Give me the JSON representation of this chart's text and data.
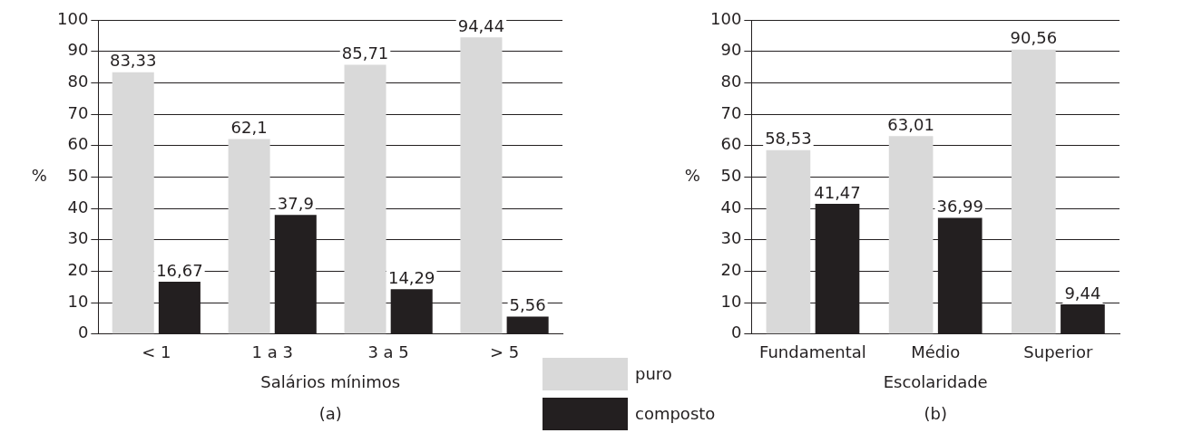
{
  "chart_data": [
    {
      "type": "bar",
      "xlabel": "Salários mínimos",
      "ylabel": "%",
      "categories": [
        "< 1",
        "1 a 3",
        "3 a 5",
        "> 5"
      ],
      "series": [
        {
          "name": "puro",
          "color": "#d9d9d9",
          "values": [
            83.33,
            62.1,
            85.71,
            94.44
          ],
          "value_labels": [
            "83,33",
            "62,1",
            "85,71",
            "94,44"
          ]
        },
        {
          "name": "composto",
          "color": "#231f20",
          "values": [
            16.67,
            37.9,
            14.29,
            5.56
          ],
          "value_labels": [
            "16,67",
            "37,9",
            "14,29",
            "5,56"
          ]
        }
      ],
      "ylim": [
        0,
        100
      ],
      "yticks": [
        0,
        10,
        20,
        30,
        40,
        50,
        60,
        70,
        80,
        90,
        100
      ],
      "grid": "y",
      "legend": "bottom right",
      "annotations": [
        "(a)"
      ]
    },
    {
      "type": "bar",
      "xlabel": "Escolaridade",
      "ylabel": "%",
      "categories": [
        "Fundamental",
        "Médio",
        "Superior"
      ],
      "series": [
        {
          "color": "#d9d9d9",
          "values": [
            58.53,
            63.01,
            90.56
          ],
          "value_labels": [
            "58,53",
            "63,01",
            "90,56"
          ]
        },
        {
          "color": "#231f20",
          "values": [
            41.47,
            36.99,
            9.44
          ],
          "value_labels": [
            "41,47",
            "36,99",
            "9,44"
          ]
        }
      ],
      "ylim": [
        0,
        100
      ],
      "yticks": [
        0,
        10,
        20,
        30,
        40,
        50,
        60,
        70,
        80,
        90,
        100
      ],
      "grid": "y",
      "annotations": [
        "(b)"
      ]
    }
  ]
}
